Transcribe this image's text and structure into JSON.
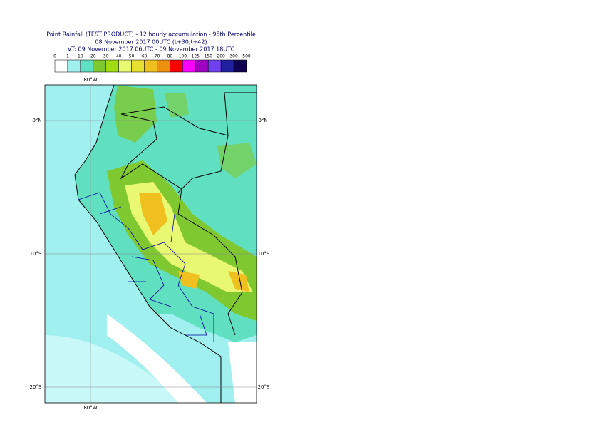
{
  "header": {
    "title": "Point Rainfall (TEST PRODUCT) - 12 hourly accumulation - 95th Percentile",
    "run": "08 November 2017 00UTC (t+30,t+42)",
    "valid": "VT: 09 November 2017 06UTC - 09 November 2017 18UTC"
  },
  "legend": {
    "labels": [
      "0",
      "1",
      "10",
      "20",
      "30",
      "40",
      "50",
      "60",
      "70",
      "80",
      "100",
      "125",
      "150",
      "200",
      "300",
      "500"
    ],
    "colors": [
      "#ffffff",
      "#a0f0f0",
      "#60e0c0",
      "#80c830",
      "#a0dc10",
      "#e8f870",
      "#e8e030",
      "#f0c020",
      "#f09010",
      "#ff0000",
      "#ff00ff",
      "#a000c0",
      "#7040f0",
      "#2020a0",
      "#100050"
    ]
  },
  "map": {
    "lon_label": "80°W",
    "lat_labels": [
      "0°N",
      "10°S",
      "20°S"
    ]
  }
}
